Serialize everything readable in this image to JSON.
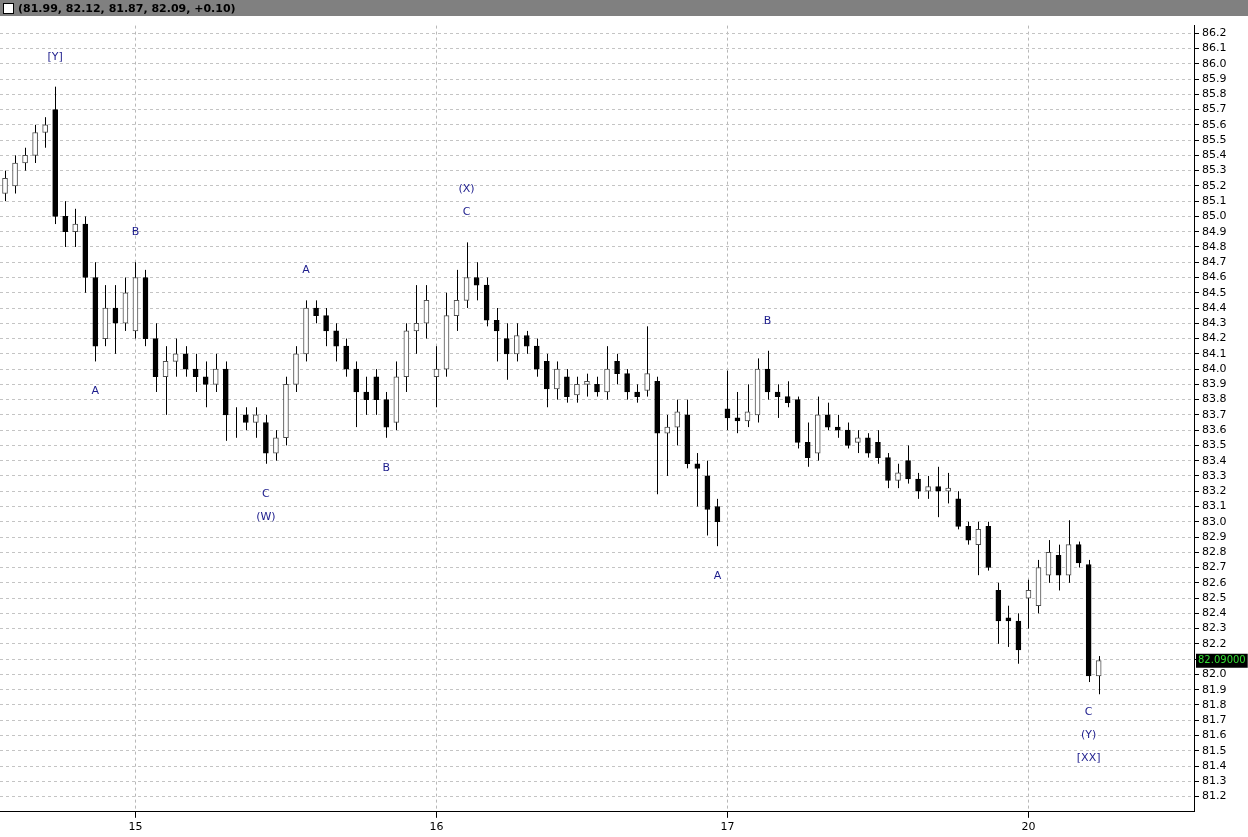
{
  "chart_data": {
    "type": "candlestick",
    "title": "(81.99, 82.12, 81.87, 82.09, +0.10)",
    "categories": [
      null,
      null,
      null,
      null,
      null,
      null,
      null,
      null,
      null,
      null,
      null,
      null,
      null,
      "15",
      null,
      null,
      null,
      null,
      null,
      null,
      null,
      null,
      null,
      null,
      null,
      null,
      null,
      null,
      null,
      null,
      null,
      null,
      null,
      null,
      null,
      null,
      null,
      null,
      null,
      null,
      null,
      null,
      null,
      "16",
      null,
      null,
      null,
      null,
      null,
      null,
      null,
      null,
      null,
      null,
      null,
      null,
      null,
      null,
      null,
      null,
      null,
      null,
      null,
      null,
      null,
      null,
      null,
      null,
      null,
      null,
      null,
      null,
      "17",
      null,
      null,
      null,
      null,
      null,
      null,
      null,
      null,
      null,
      null,
      null,
      null,
      null,
      null,
      null,
      null,
      null,
      null,
      null,
      null,
      null,
      null,
      null,
      null,
      null,
      null,
      null,
      null,
      null,
      "20",
      null,
      null,
      null,
      null,
      null,
      null,
      null,
      null,
      null,
      null,
      null,
      null,
      null,
      null,
      null,
      null
    ],
    "ohlc": [
      [
        85.15,
        85.3,
        85.1,
        85.25
      ],
      [
        85.2,
        85.4,
        85.15,
        85.35
      ],
      [
        85.35,
        85.45,
        85.3,
        85.4
      ],
      [
        85.4,
        85.6,
        85.35,
        85.55
      ],
      [
        85.55,
        85.65,
        85.45,
        85.6
      ],
      [
        85.7,
        85.85,
        84.95,
        85.0
      ],
      [
        85.0,
        85.1,
        84.8,
        84.9
      ],
      [
        84.9,
        85.05,
        84.8,
        84.95
      ],
      [
        84.95,
        85.0,
        84.5,
        84.6
      ],
      [
        84.6,
        84.7,
        84.05,
        84.15
      ],
      [
        84.2,
        84.55,
        84.15,
        84.4
      ],
      [
        84.4,
        84.55,
        84.1,
        84.3
      ],
      [
        84.3,
        84.6,
        84.25,
        84.5
      ],
      [
        84.25,
        84.7,
        84.2,
        84.6
      ],
      [
        84.6,
        84.65,
        84.15,
        84.2
      ],
      [
        84.2,
        84.3,
        83.85,
        83.95
      ],
      [
        83.95,
        84.15,
        83.7,
        84.05
      ],
      [
        84.05,
        84.2,
        83.95,
        84.1
      ],
      [
        84.1,
        84.15,
        83.95,
        84.0
      ],
      [
        84.0,
        84.1,
        83.85,
        83.95
      ],
      [
        83.95,
        84.05,
        83.75,
        83.9
      ],
      [
        83.9,
        84.1,
        83.85,
        84.0
      ],
      [
        84.0,
        84.05,
        83.53,
        83.7
      ],
      [
        83.7,
        83.75,
        83.55,
        83.7
      ],
      [
        83.7,
        83.75,
        83.6,
        83.65
      ],
      [
        83.65,
        83.75,
        83.55,
        83.7
      ],
      [
        83.65,
        83.7,
        83.38,
        83.45
      ],
      [
        83.45,
        83.6,
        83.4,
        83.55
      ],
      [
        83.55,
        83.95,
        83.5,
        83.9
      ],
      [
        83.9,
        84.15,
        83.85,
        84.1
      ],
      [
        84.1,
        84.45,
        84.05,
        84.4
      ],
      [
        84.4,
        84.45,
        84.3,
        84.35
      ],
      [
        84.35,
        84.4,
        84.15,
        84.25
      ],
      [
        84.25,
        84.3,
        84.05,
        84.15
      ],
      [
        84.15,
        84.2,
        83.95,
        84.0
      ],
      [
        84.0,
        84.05,
        83.62,
        83.85
      ],
      [
        83.85,
        83.95,
        83.7,
        83.8
      ],
      [
        83.95,
        84.0,
        83.7,
        83.8
      ],
      [
        83.8,
        83.85,
        83.55,
        83.62
      ],
      [
        83.65,
        84.05,
        83.6,
        83.95
      ],
      [
        83.95,
        84.3,
        83.85,
        84.25
      ],
      [
        84.25,
        84.55,
        84.1,
        84.3
      ],
      [
        84.3,
        84.55,
        84.2,
        84.45
      ],
      [
        83.95,
        84.15,
        83.75,
        84.0
      ],
      [
        84.0,
        84.5,
        83.95,
        84.35
      ],
      [
        84.35,
        84.65,
        84.25,
        84.45
      ],
      [
        84.45,
        84.83,
        84.4,
        84.6
      ],
      [
        84.6,
        84.7,
        84.45,
        84.55
      ],
      [
        84.55,
        84.6,
        84.28,
        84.32
      ],
      [
        84.32,
        84.4,
        84.05,
        84.25
      ],
      [
        84.2,
        84.3,
        83.93,
        84.1
      ],
      [
        84.1,
        84.3,
        84.05,
        84.22
      ],
      [
        84.22,
        84.25,
        84.1,
        84.15
      ],
      [
        84.15,
        84.2,
        83.95,
        84.0
      ],
      [
        84.05,
        84.1,
        83.75,
        83.87
      ],
      [
        83.87,
        84.05,
        83.8,
        84.0
      ],
      [
        83.95,
        84.0,
        83.78,
        83.82
      ],
      [
        83.83,
        83.95,
        83.78,
        83.9
      ],
      [
        83.9,
        83.97,
        83.82,
        83.92
      ],
      [
        83.9,
        83.95,
        83.82,
        83.85
      ],
      [
        83.85,
        84.15,
        83.8,
        84.0
      ],
      [
        84.05,
        84.1,
        83.9,
        83.97
      ],
      [
        83.97,
        84.0,
        83.8,
        83.85
      ],
      [
        83.85,
        83.9,
        83.78,
        83.82
      ],
      [
        83.86,
        84.28,
        83.82,
        83.97
      ],
      [
        83.92,
        83.95,
        83.18,
        83.58
      ],
      [
        83.58,
        83.7,
        83.3,
        83.62
      ],
      [
        83.62,
        83.8,
        83.5,
        83.72
      ],
      [
        83.7,
        83.8,
        83.35,
        83.38
      ],
      [
        83.38,
        83.45,
        83.1,
        83.35
      ],
      [
        83.3,
        83.4,
        82.91,
        83.08
      ],
      [
        83.1,
        83.15,
        82.84,
        83.0
      ],
      [
        83.74,
        83.99,
        83.6,
        83.68
      ],
      [
        83.68,
        83.85,
        83.58,
        83.66
      ],
      [
        83.66,
        83.9,
        83.62,
        83.72
      ],
      [
        83.7,
        84.07,
        83.65,
        84.0
      ],
      [
        84.0,
        84.12,
        83.8,
        83.85
      ],
      [
        83.85,
        83.9,
        83.68,
        83.82
      ],
      [
        83.82,
        83.92,
        83.75,
        83.78
      ],
      [
        83.8,
        83.82,
        83.48,
        83.52
      ],
      [
        83.52,
        83.65,
        83.36,
        83.42
      ],
      [
        83.45,
        83.82,
        83.4,
        83.7
      ],
      [
        83.7,
        83.78,
        83.6,
        83.62
      ],
      [
        83.62,
        83.7,
        83.55,
        83.6
      ],
      [
        83.6,
        83.65,
        83.48,
        83.5
      ],
      [
        83.52,
        83.6,
        83.45,
        83.55
      ],
      [
        83.55,
        83.58,
        83.42,
        83.45
      ],
      [
        83.52,
        83.6,
        83.38,
        83.42
      ],
      [
        83.42,
        83.45,
        83.22,
        83.27
      ],
      [
        83.27,
        83.38,
        83.22,
        83.32
      ],
      [
        83.4,
        83.5,
        83.25,
        83.28
      ],
      [
        83.28,
        83.32,
        83.15,
        83.2
      ],
      [
        83.2,
        83.3,
        83.15,
        83.23
      ],
      [
        83.23,
        83.36,
        83.03,
        83.2
      ],
      [
        83.2,
        83.32,
        83.12,
        83.22
      ],
      [
        83.15,
        83.2,
        82.95,
        82.97
      ],
      [
        82.97,
        83.0,
        82.85,
        82.88
      ],
      [
        82.85,
        83.0,
        82.65,
        82.95
      ],
      [
        82.97,
        83.0,
        82.68,
        82.7
      ],
      [
        82.55,
        82.6,
        82.2,
        82.35
      ],
      [
        82.37,
        82.45,
        82.18,
        82.35
      ],
      [
        82.35,
        82.4,
        82.07,
        82.16
      ],
      [
        82.5,
        82.62,
        82.3,
        82.55
      ],
      [
        82.45,
        82.75,
        82.4,
        82.7
      ],
      [
        82.65,
        82.88,
        82.6,
        82.8
      ],
      [
        82.78,
        82.85,
        82.55,
        82.65
      ],
      [
        82.65,
        83.01,
        82.6,
        82.85
      ],
      [
        82.85,
        82.87,
        82.7,
        82.73
      ],
      [
        82.72,
        82.75,
        81.95,
        81.99
      ],
      [
        81.99,
        82.12,
        81.87,
        82.09
      ],
      null,
      null,
      null,
      null,
      null,
      null,
      null,
      null,
      null
    ],
    "value_labels": [
      null,
      null,
      null,
      null,
      null,
      "[Y]",
      null,
      null,
      null,
      "A",
      null,
      null,
      null,
      "B",
      null,
      null,
      null,
      null,
      null,
      null,
      null,
      null,
      null,
      null,
      null,
      null,
      "C\n(W)",
      null,
      null,
      null,
      "A",
      null,
      null,
      null,
      null,
      null,
      null,
      null,
      "B",
      null,
      null,
      null,
      null,
      null,
      null,
      null,
      "(X)\nC",
      null,
      null,
      null,
      null,
      null,
      null,
      null,
      null,
      null,
      null,
      null,
      null,
      null,
      null,
      null,
      null,
      null,
      null,
      null,
      null,
      null,
      null,
      null,
      null,
      "A",
      null,
      null,
      null,
      null,
      "B",
      null,
      null,
      null,
      null,
      null,
      null,
      null,
      null,
      null,
      null,
      null,
      null,
      null,
      null,
      null,
      null,
      null,
      null,
      null,
      null,
      null,
      null,
      null,
      null,
      null,
      null,
      null,
      null,
      null,
      null,
      null,
      "C\n(Y)\n[XX]",
      null,
      null,
      null,
      null,
      null,
      null,
      null,
      null,
      null,
      null
    ],
    "ylim": [
      81.1,
      86.25
    ],
    "yticks": [
      81.2,
      81.3,
      81.4,
      81.5,
      81.6,
      81.7,
      81.8,
      81.9,
      {
        "value": 82,
        "label": "82.0"
      },
      {
        "value": 82.1,
        "label": null
      },
      82.2,
      82.3,
      82.4,
      82.5,
      82.6,
      82.7,
      82.8,
      82.9,
      {
        "value": 83,
        "label": "83.0"
      },
      83.1,
      83.2,
      83.3,
      83.4,
      83.5,
      83.6,
      83.7,
      83.8,
      83.9,
      {
        "value": 84,
        "label": "84.0"
      },
      84.1,
      84.2,
      84.3,
      84.4,
      84.5,
      84.6,
      84.7,
      84.8,
      84.9,
      {
        "value": 85,
        "label": "85.0"
      },
      85.1,
      85.2,
      85.3,
      85.4,
      85.5,
      85.6,
      85.7,
      85.8,
      85.9,
      {
        "value": 86,
        "label": "86.0"
      },
      86.1,
      86.2
    ],
    "grid": true,
    "annotations": [
      "82.09000"
    ]
  }
}
